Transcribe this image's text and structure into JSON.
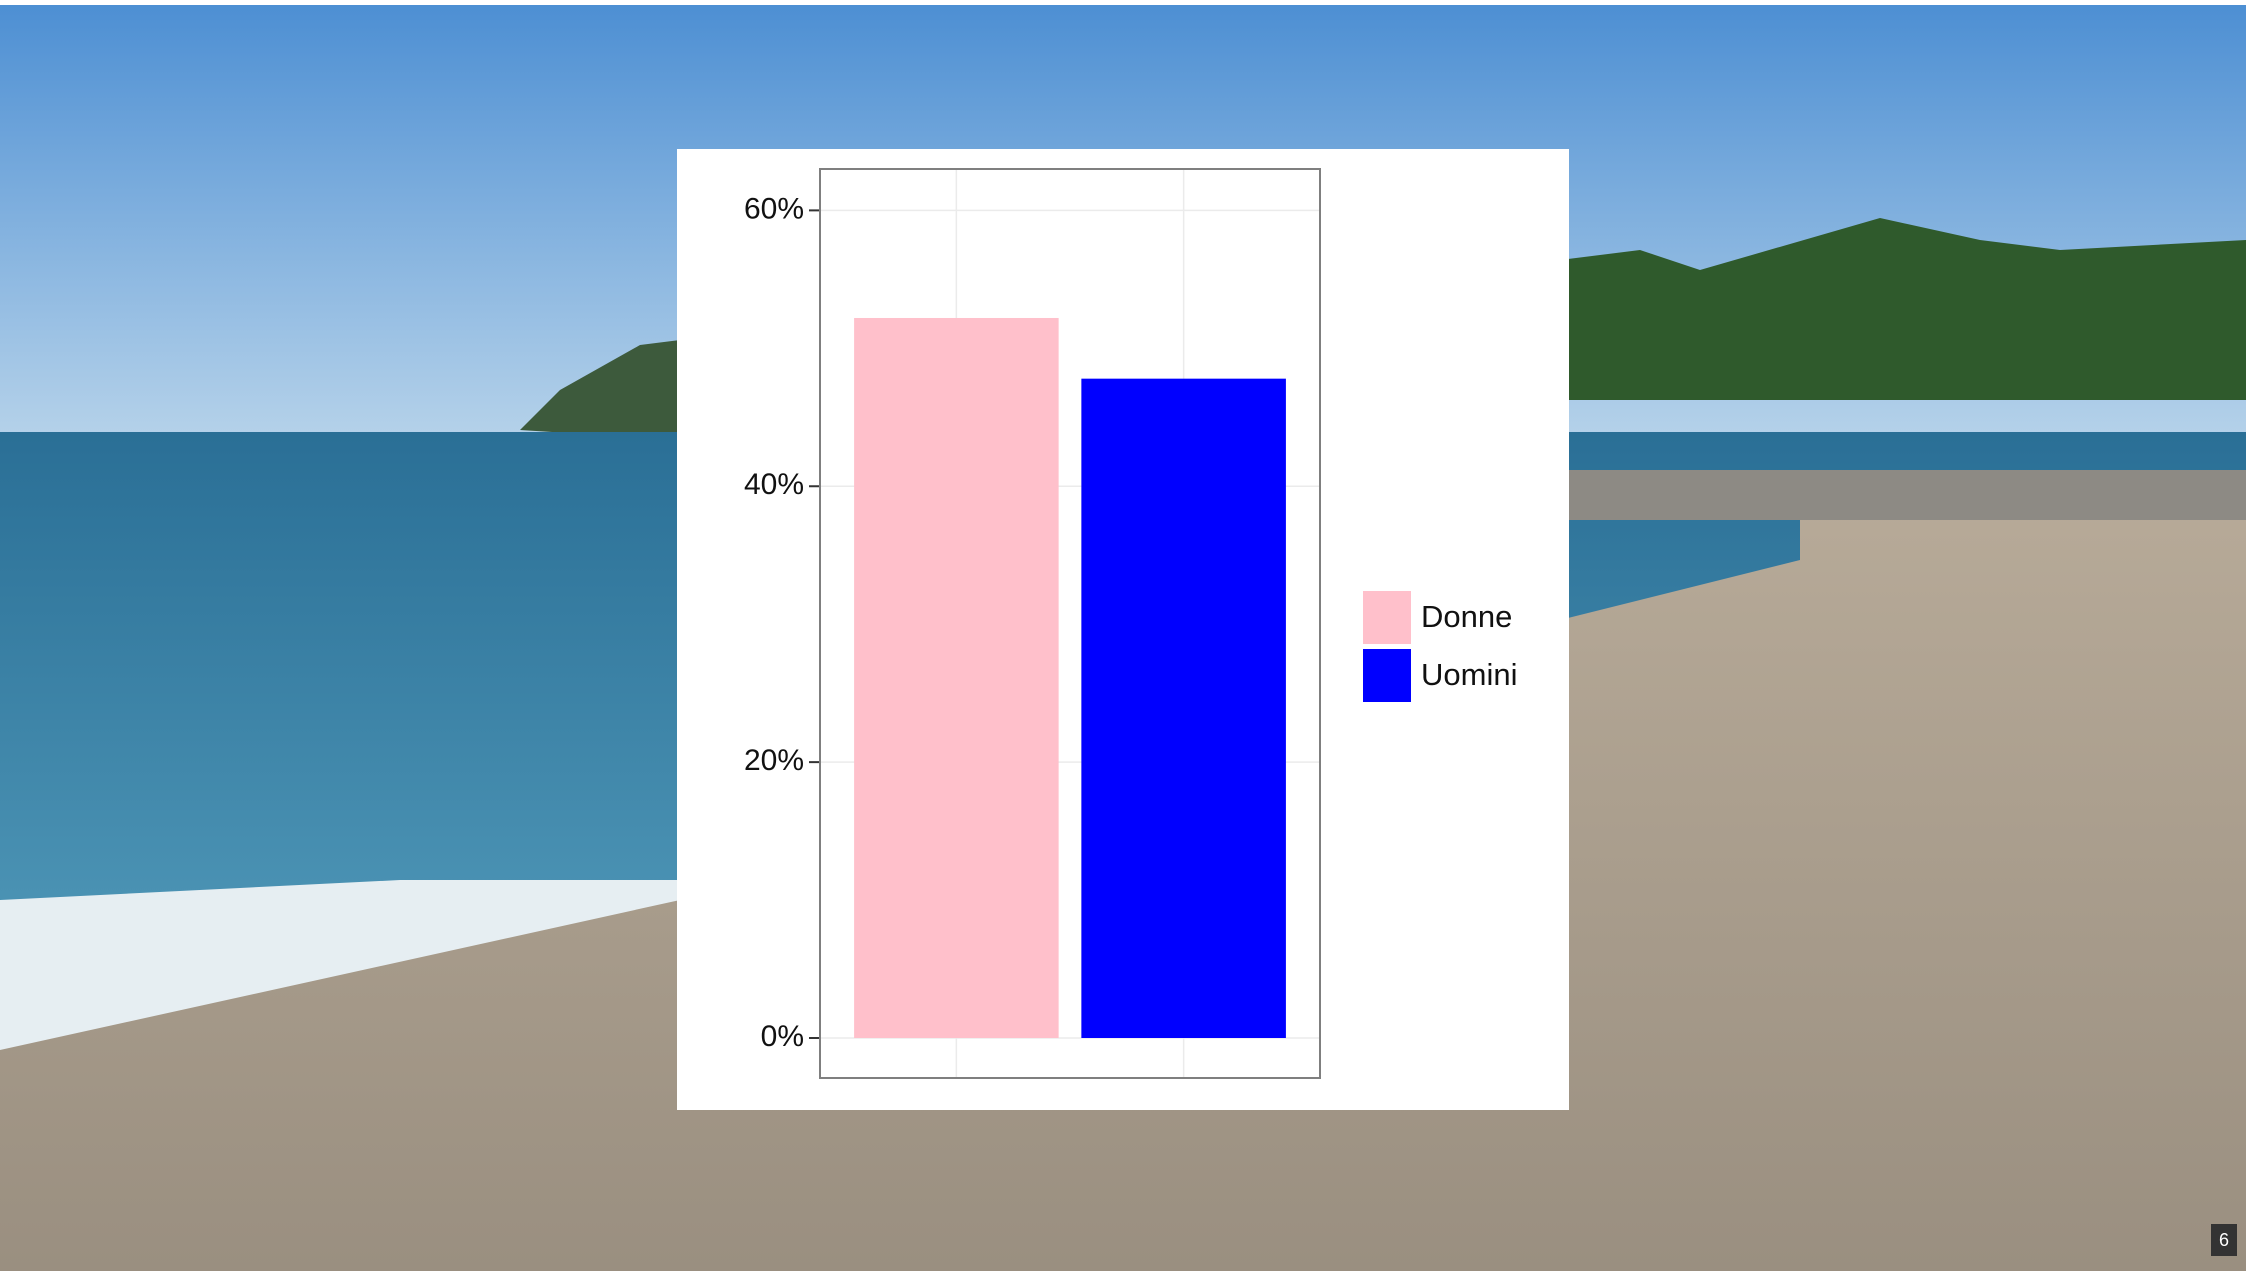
{
  "chart_data": {
    "type": "bar",
    "categories": [
      null,
      null
    ],
    "series": [
      {
        "name": "Donne",
        "color": "#ffc0cb",
        "values": [
          52.2,
          null
        ]
      },
      {
        "name": "Uomini",
        "color": "#0000ff",
        "values": [
          null,
          47.8
        ]
      }
    ],
    "ylim": [
      -2.9,
      63.0
    ],
    "yticks": [
      {
        "value": 0,
        "label": "0%"
      },
      {
        "value": 20,
        "label": "20%"
      },
      {
        "value": 40,
        "label": "40%"
      },
      {
        "value": 60,
        "label": "60%"
      }
    ],
    "grid": true,
    "legend": "right"
  },
  "slide_number": "6"
}
